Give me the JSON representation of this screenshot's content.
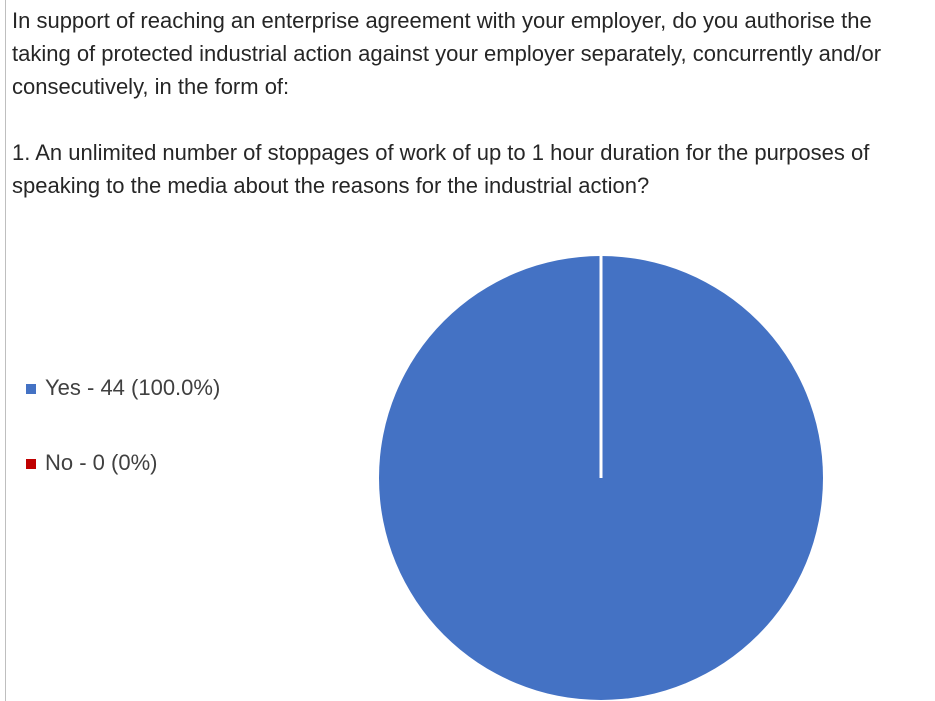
{
  "chart_data": {
    "type": "pie",
    "title": "In support of reaching an enterprise agreement with your employer, do you authorise the taking of protected industrial action against your employer separately, concurrently and/or consecutively, in the form of:",
    "subtitle": "1. An unlimited number of stoppages of work of up to 1 hour duration for the purposes of speaking to the media about the reasons for the industrial action?",
    "categories": [
      "Yes - 44 (100.0%)",
      "No - 0 (0%)"
    ],
    "values": [
      44,
      0
    ],
    "colors": [
      "#4472c4",
      "#c00000"
    ],
    "legend": "left"
  }
}
